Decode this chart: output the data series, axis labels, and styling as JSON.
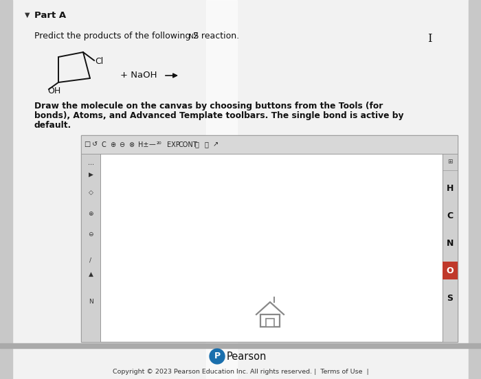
{
  "bg_color": "#e2e2e2",
  "content_bg": "#f2f2f2",
  "title": "Part A",
  "cl_label": "Cl",
  "oh_label": "OH",
  "naoh_text": "+ NaOH",
  "instruction_bold": "Draw the molecule on the canvas by choosing buttons from the Tools (for",
  "instruction_bold2": "bonds), Atoms, and Advanced Template toolbars. The single bond is active by",
  "instruction_bold3": "default.",
  "side_icons_right": [
    "H",
    "C",
    "N",
    "O",
    "S"
  ],
  "pearson_text": "Pearson",
  "copyright_text": "Copyright © 2023 Pearson Education Inc. All rights reserved. |  Terms of Use  |",
  "canvas_bg": "#ffffff",
  "border_color": "#999999",
  "o_highlight_bg": "#c0392b",
  "o_highlight_fg": "#ffffff",
  "pearson_blue": "#1a6fad",
  "arrow_color": "#111111",
  "sidebar_bg": "#d0d0d0",
  "toolbar_bg": "#d8d8d8",
  "stripe_color": "#ffffff",
  "text_color": "#111111",
  "gray_bar": "#aaaaaa"
}
